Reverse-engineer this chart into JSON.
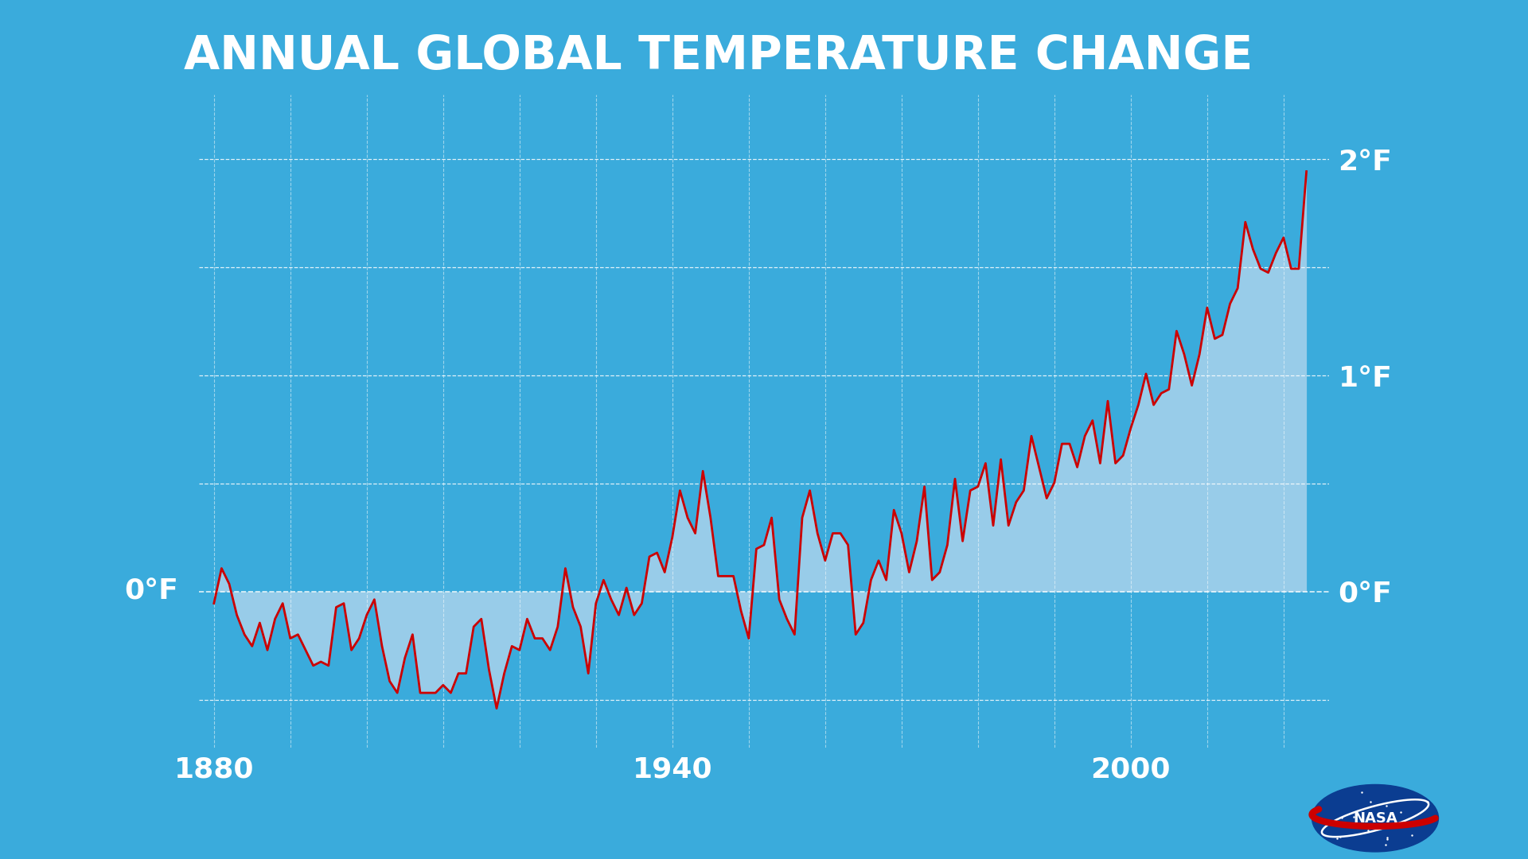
{
  "title": "ANNUAL GLOBAL TEMPERATURE CHANGE",
  "bg_color": "#3aabdc",
  "line_color": "#cc0000",
  "fill_color": "#b8d8ee",
  "grid_color": "#ffffff",
  "text_color": "#ffffff",
  "bottom_bar_color": "#c8c8c8",
  "title_fontsize": 42,
  "tick_fontsize": 26,
  "ylabel_right_labels": [
    "0°F",
    "1°F",
    "2°F"
  ],
  "ylabel_right_values": [
    0.0,
    1.0,
    2.0
  ],
  "xlabel_ticks": [
    1880,
    1940,
    2000
  ],
  "ylim": [
    -0.72,
    2.3
  ],
  "xlim": [
    1878,
    2026
  ],
  "grid_y": [
    -0.5,
    0.0,
    0.5,
    1.0,
    1.5,
    2.0
  ],
  "years": [
    1880,
    1881,
    1882,
    1883,
    1884,
    1885,
    1886,
    1887,
    1888,
    1889,
    1890,
    1891,
    1892,
    1893,
    1894,
    1895,
    1896,
    1897,
    1898,
    1899,
    1900,
    1901,
    1902,
    1903,
    1904,
    1905,
    1906,
    1907,
    1908,
    1909,
    1910,
    1911,
    1912,
    1913,
    1914,
    1915,
    1916,
    1917,
    1918,
    1919,
    1920,
    1921,
    1922,
    1923,
    1924,
    1925,
    1926,
    1927,
    1928,
    1929,
    1930,
    1931,
    1932,
    1933,
    1934,
    1935,
    1936,
    1937,
    1938,
    1939,
    1940,
    1941,
    1942,
    1943,
    1944,
    1945,
    1946,
    1947,
    1948,
    1949,
    1950,
    1951,
    1952,
    1953,
    1954,
    1955,
    1956,
    1957,
    1958,
    1959,
    1960,
    1961,
    1962,
    1963,
    1964,
    1965,
    1966,
    1967,
    1968,
    1969,
    1970,
    1971,
    1972,
    1973,
    1974,
    1975,
    1976,
    1977,
    1978,
    1979,
    1980,
    1981,
    1982,
    1983,
    1984,
    1985,
    1986,
    1987,
    1988,
    1989,
    1990,
    1991,
    1992,
    1993,
    1994,
    1995,
    1996,
    1997,
    1998,
    1999,
    2000,
    2001,
    2002,
    2003,
    2004,
    2005,
    2006,
    2007,
    2008,
    2009,
    2010,
    2011,
    2012,
    2013,
    2014,
    2015,
    2016,
    2017,
    2018,
    2019,
    2020,
    2021,
    2022,
    2023
  ],
  "temps_f": [
    -0.054,
    0.108,
    0.036,
    -0.108,
    -0.198,
    -0.252,
    -0.144,
    -0.27,
    -0.126,
    -0.054,
    -0.216,
    -0.198,
    -0.27,
    -0.342,
    -0.324,
    -0.342,
    -0.072,
    -0.054,
    -0.27,
    -0.216,
    -0.108,
    -0.036,
    -0.252,
    -0.414,
    -0.468,
    -0.306,
    -0.198,
    -0.468,
    -0.468,
    -0.468,
    -0.432,
    -0.468,
    -0.378,
    -0.378,
    -0.162,
    -0.126,
    -0.36,
    -0.54,
    -0.378,
    -0.252,
    -0.27,
    -0.126,
    -0.216,
    -0.216,
    -0.27,
    -0.162,
    0.108,
    -0.072,
    -0.162,
    -0.378,
    -0.054,
    0.054,
    -0.036,
    -0.108,
    0.018,
    -0.108,
    -0.054,
    0.162,
    0.18,
    0.09,
    0.252,
    0.468,
    0.342,
    0.27,
    0.558,
    0.342,
    0.072,
    0.072,
    0.072,
    -0.09,
    -0.216,
    0.198,
    0.216,
    0.342,
    -0.036,
    -0.126,
    -0.198,
    0.342,
    0.468,
    0.27,
    0.144,
    0.27,
    0.27,
    0.216,
    -0.198,
    -0.144,
    0.054,
    0.144,
    0.054,
    0.378,
    0.27,
    0.09,
    0.234,
    0.486,
    0.054,
    0.09,
    0.216,
    0.522,
    0.234,
    0.468,
    0.486,
    0.594,
    0.306,
    0.612,
    0.306,
    0.414,
    0.468,
    0.72,
    0.576,
    0.432,
    0.504,
    0.684,
    0.684,
    0.576,
    0.72,
    0.792,
    0.594,
    0.882,
    0.594,
    0.63,
    0.756,
    0.864,
    1.008,
    0.864,
    0.918,
    0.936,
    1.206,
    1.098,
    0.954,
    1.098,
    1.314,
    1.17,
    1.188,
    1.332,
    1.404,
    1.71,
    1.584,
    1.494,
    1.476,
    1.566,
    1.638,
    1.494,
    1.494,
    1.944
  ]
}
